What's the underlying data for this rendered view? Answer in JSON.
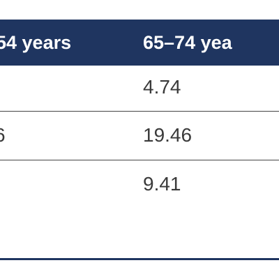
{
  "table": {
    "header": [
      "54 years",
      "65–74 yea"
    ],
    "rows": [
      {
        "right": "4.74"
      },
      {
        "left": "6",
        "right": "19.46"
      },
      {
        "right": "9.41"
      }
    ]
  }
}
